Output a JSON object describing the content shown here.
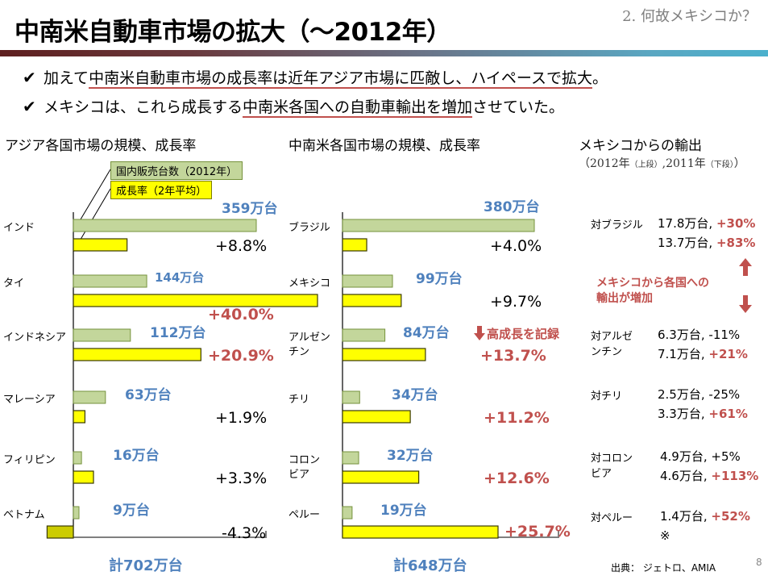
{
  "header": {
    "title": "中南米自動車市場の拡大（～2012年）",
    "section": "2. 何故メキシコか？"
  },
  "bullets": [
    {
      "pre": "加えて",
      "underlined": "中南米自動車市場の成長率は近年アジア市場に匹敵し、ハイペースで拡大",
      "post": "。"
    },
    {
      "pre": "メキシコは、これら成長する",
      "underlined": "中南米各国への自動車輸出を増加",
      "post": "させていた。"
    }
  ],
  "check_icon": "✔",
  "legend": {
    "sales": "国内販売台数（2012年）",
    "growth": "成長率（2年平均）"
  },
  "colors": {
    "sales_bar": "#c3d69b",
    "sales_border": "#76923c",
    "growth_bar": "#ffff00",
    "growth_negative": "#cccc00",
    "blue_label": "#4f81bd",
    "red_label": "#c0504d"
  },
  "chart_data": [
    {
      "type": "bar",
      "title": "アジア各国市場の規模、成長率",
      "categories": [
        "インド",
        "タイ",
        "インドネシア",
        "マレーシア",
        "フィリピン",
        "ベトナム"
      ],
      "series": [
        {
          "name": "国内販売台数（2012年）",
          "unit": "万台",
          "values": [
            359,
            144,
            112,
            63,
            16,
            9
          ],
          "labels": [
            "359万台",
            "144万台",
            "112万台",
            "63万台",
            "16万台",
            "9万台"
          ]
        },
        {
          "name": "成長率（2年平均）",
          "unit": "%",
          "values": [
            8.8,
            40.0,
            20.9,
            1.9,
            3.3,
            -4.3
          ],
          "labels": [
            "+8.8%",
            "+40.0%",
            "+20.9%",
            "+1.9%",
            "+3.3%",
            "-4.3%"
          ],
          "highlight": [
            false,
            true,
            true,
            false,
            false,
            false
          ]
        }
      ],
      "total": "計702万台"
    },
    {
      "type": "bar",
      "title": "中南米各国市場の規模、成長率",
      "categories": [
        "ブラジル",
        "メキシコ",
        "アルゼン\nチン",
        "チリ",
        "コロン\nビア",
        "ペルー"
      ],
      "series": [
        {
          "name": "国内販売台数（2012年）",
          "unit": "万台",
          "values": [
            380,
            99,
            84,
            34,
            32,
            19
          ],
          "labels": [
            "380万台",
            "99万台",
            "84万台",
            "34万台",
            "32万台",
            "19万台"
          ]
        },
        {
          "name": "成長率（2年平均）",
          "unit": "%",
          "values": [
            4.0,
            9.7,
            13.7,
            11.2,
            12.6,
            25.7
          ],
          "labels": [
            "+4.0%",
            "+9.7%",
            "+13.7%",
            "+11.2%",
            "+12.6%",
            "+25.7%"
          ],
          "highlight": [
            false,
            false,
            true,
            true,
            true,
            true
          ]
        }
      ],
      "total": "計648万台",
      "annotation": "高成長を記録"
    }
  ],
  "exports": {
    "title": "メキシコからの輸出",
    "subtitle_a": "（2012年",
    "subtitle_b": "（上段）",
    "subtitle_c": ",2011年",
    "subtitle_d": "（下段）",
    "subtitle_e": "）",
    "callout_line1": "メキシコから各国への",
    "callout_line2": "輸出が増加",
    "rows": [
      {
        "label": "対ブラジル",
        "top": "17.8万台,",
        "top_pct": "+30%",
        "top_red": true,
        "bottom": "13.7万台,",
        "bottom_pct": "+83%",
        "bottom_red": true
      },
      {
        "label": "対アルゼ\nンチン",
        "top": "6.3万台,",
        "top_pct": "-11%",
        "top_red": false,
        "bottom": "7.1万台,",
        "bottom_pct": "+21%",
        "bottom_red": true
      },
      {
        "label": "対チリ",
        "top": "2.5万台,",
        "top_pct": "-25%",
        "top_red": false,
        "bottom": "3.3万台,",
        "bottom_pct": "+61%",
        "bottom_red": true
      },
      {
        "label": "対コロン\nビア",
        "top": "4.9万台,",
        "top_pct": "+5%",
        "top_red": false,
        "bottom": "4.6万台,",
        "bottom_pct": "+113%",
        "bottom_red": true
      },
      {
        "label": "対ペルー",
        "top": "1.4万台,",
        "top_pct": "+52%",
        "top_red": true,
        "bottom": "※",
        "bottom_pct": "",
        "bottom_red": false
      }
    ]
  },
  "footer": {
    "source": "出典：  ジェトロ、AMIA",
    "page": "8"
  }
}
